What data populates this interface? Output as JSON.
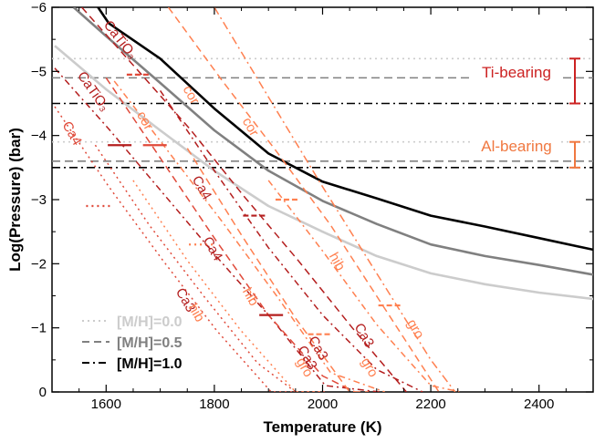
{
  "chart_data": {
    "type": "line",
    "xlabel": "Temperature (K)",
    "ylabel": "Log(Pressure) (bar)",
    "xlim": [
      1500,
      2500
    ],
    "ylim": [
      0,
      -6
    ],
    "xticks": [
      "1600",
      "1800",
      "2000",
      "2200",
      "2400"
    ],
    "yticks": [
      "0",
      "−1",
      "−2",
      "−3",
      "−4",
      "−5",
      "−6"
    ],
    "colors": {
      "mh00": "#cccccc",
      "mh05": "#808080",
      "mh10": "#000000",
      "ti": "#cc2222",
      "al": "#f07840",
      "dark_red": "#b41e1e",
      "mid_red": "#e04a3a",
      "orange": "#ff8050"
    },
    "tp_profiles": [
      {
        "name": "[M/H]=0.0",
        "color": "#cccccc",
        "x": [
          1505,
          1600,
          1700,
          1800,
          1900,
          2000,
          2100,
          2200,
          2300,
          2400,
          2500
        ],
        "y": [
          -5.4,
          -4.72,
          -4.08,
          -3.45,
          -2.9,
          -2.5,
          -2.12,
          -1.85,
          -1.68,
          -1.55,
          -1.45
        ]
      },
      {
        "name": "[M/H]=0.5",
        "color": "#808080",
        "x": [
          1540,
          1600,
          1700,
          1800,
          1900,
          2000,
          2100,
          2200,
          2300,
          2400,
          2500
        ],
        "y": [
          -6.0,
          -5.55,
          -4.82,
          -4.08,
          -3.45,
          -2.98,
          -2.62,
          -2.3,
          -2.12,
          -1.98,
          -1.83
        ]
      },
      {
        "name": "[M/H]=1.0",
        "color": "#000000",
        "x": [
          1585,
          1605,
          1700,
          1800,
          1900,
          2000,
          2100,
          2200,
          2300,
          2400,
          2500
        ],
        "y": [
          -6.0,
          -5.75,
          -5.2,
          -4.42,
          -3.72,
          -3.28,
          -3.02,
          -2.75,
          -2.58,
          -2.4,
          -2.22
        ]
      }
    ],
    "condensation_curves": [
      {
        "species": "CaTiO₃",
        "metallicity": "[M/H]=1.0",
        "color": "#b41e1e",
        "dash": "8,5",
        "x": [
          1555,
          1655,
          1755,
          1855,
          1955,
          2055,
          2155
        ],
        "y": [
          -6.0,
          -5.05,
          -4.1,
          -3.05,
          -2.05,
          -1.0,
          0.0
        ]
      },
      {
        "species": "CaTiO₃",
        "metallicity": "[M/H]=0.5",
        "color": "#b41e1e",
        "dash": "7,4,2,4",
        "x": [
          1505,
          1605,
          1705,
          1805,
          1905,
          2005,
          2105
        ],
        "y": [
          -5.05,
          -4.1,
          -3.1,
          -2.1,
          -1.15,
          -0.1,
          0.0
        ]
      },
      {
        "species": "cor",
        "metallicity": "[M/H]=1.0",
        "color": "#ff8050",
        "dash": "8,5",
        "x": [
          1715,
          1815,
          1915,
          2015,
          2115,
          2215
        ],
        "y": [
          -6.0,
          -4.85,
          -3.75,
          -2.6,
          -1.3,
          0.0
        ]
      },
      {
        "species": "cor",
        "metallicity": "[M/H]=0.5",
        "color": "#ff8050",
        "dash": "7,4,2,4",
        "x": [
          1615,
          1715,
          1815,
          1915,
          2015,
          2115
        ],
        "y": [
          -4.85,
          -3.75,
          -2.65,
          -1.5,
          -0.3,
          0.0
        ]
      },
      {
        "species": "cor",
        "metallicity": "[M/H]=1.0",
        "color": "#ff8050",
        "dash": "9,4,2,4",
        "x": [
          1800,
          1900,
          2000,
          2100,
          2200,
          2245
        ],
        "y": [
          -6.0,
          -4.6,
          -3.2,
          -1.85,
          -0.5,
          0.0
        ]
      },
      {
        "species": "Ca4",
        "metallicity": "[M/H]=0.5",
        "color": "#e04a3a",
        "dash": "2,4",
        "x": [
          1505,
          1605,
          1705,
          1805,
          1905,
          2005
        ],
        "y": [
          -4.45,
          -3.2,
          -2.05,
          -0.95,
          0.0,
          0.0
        ]
      },
      {
        "species": "Ca4",
        "metallicity": "[M/H]=1.0",
        "color": "#e04a3a",
        "dash": "8,5",
        "x": [
          1600,
          1700,
          1800,
          1900,
          2000,
          2060
        ],
        "y": [
          -4.9,
          -3.65,
          -2.4,
          -1.2,
          -0.25,
          0.0
        ]
      },
      {
        "species": "Ca3",
        "metallicity": "[M/H]=0.0",
        "color": "#e04a3a",
        "dash": "2,4",
        "x": [
          1580,
          1680,
          1780,
          1880,
          1950
        ],
        "y": [
          -3.85,
          -2.6,
          -1.5,
          -0.45,
          0.0
        ]
      },
      {
        "species": "Ca3",
        "metallicity": "[M/H]=1.0",
        "color": "#b41e1e",
        "dash": "7,4,2,4",
        "x": [
          1700,
          1800,
          1900,
          2000,
          2100,
          2185
        ],
        "y": [
          -4.7,
          -3.45,
          -2.25,
          -1.2,
          -0.35,
          0.0
        ]
      },
      {
        "species": "hib",
        "metallicity": "[M/H]=0.5",
        "color": "#ff8050",
        "dash": "2,4",
        "x": [
          1650,
          1750,
          1850,
          1950,
          2000
        ],
        "y": [
          -3.3,
          -2.05,
          -0.95,
          0.0,
          0.0
        ]
      },
      {
        "species": "hib",
        "metallicity": "[M/H]=1.0",
        "color": "#ff8050",
        "dash": "8,5",
        "x": [
          1750,
          1850,
          1950,
          2050,
          2085
        ],
        "y": [
          -3.8,
          -2.45,
          -1.15,
          0.0,
          0.0
        ]
      },
      {
        "species": "gro",
        "metallicity": "[M/H]=1.0",
        "color": "#ff8050",
        "dash": "7,4,2,4",
        "x": [
          1900,
          2000,
          2100,
          2200,
          2255
        ],
        "y": [
          -3.3,
          -2.2,
          -1.05,
          -0.1,
          0.0
        ]
      }
    ],
    "cloud_bases": [
      {
        "y": -5.2,
        "style": "dotted",
        "color": "#cccccc"
      },
      {
        "y": -4.9,
        "style": "dashed",
        "color": "#808080"
      },
      {
        "y": -4.5,
        "style": "dashdot",
        "color": "#000000"
      },
      {
        "y": -3.9,
        "style": "dotted",
        "color": "#cccccc"
      },
      {
        "y": -3.6,
        "style": "dashed",
        "color": "#808080"
      },
      {
        "y": -3.5,
        "style": "dashdot",
        "color": "#000000"
      }
    ],
    "intersection_markers": [
      {
        "x": 1660,
        "y": -4.95,
        "color": "#e04a3a",
        "dash": "8,5"
      },
      {
        "x": 1625,
        "y": -3.85,
        "color": "#b41e1e",
        "dash": ""
      },
      {
        "x": 1690,
        "y": -3.85,
        "color": "#e04a3a",
        "dash": ""
      },
      {
        "x": 1585,
        "y": -2.9,
        "color": "#e04a3a",
        "dash": "2,4"
      },
      {
        "x": 1875,
        "y": -2.75,
        "color": "#b41e1e",
        "dash": "8,5"
      },
      {
        "x": 1935,
        "y": -3.0,
        "color": "#ff8050",
        "dash": "8,5"
      },
      {
        "x": 1775,
        "y": -2.3,
        "color": "#ff8050",
        "dash": "2,4"
      },
      {
        "x": 1905,
        "y": -1.2,
        "color": "#b41e1e",
        "dash": ""
      },
      {
        "x": 1995,
        "y": -0.9,
        "color": "#ff8050",
        "dash": "8,5"
      },
      {
        "x": 2125,
        "y": -1.35,
        "color": "#ff8050",
        "dash": "8,5"
      }
    ],
    "labels": [
      {
        "text": "CaTiO₃",
        "x": 1620,
        "y": -5.45,
        "color": "#b41e1e",
        "rotate": 52
      },
      {
        "text": "CaTiO₃",
        "x": 1570,
        "y": -4.65,
        "color": "#b41e1e",
        "rotate": 55
      },
      {
        "text": "cor",
        "x": 1750,
        "y": -4.6,
        "color": "#ff8050",
        "rotate": 60
      },
      {
        "text": "cor",
        "x": 1665,
        "y": -4.2,
        "color": "#ff8050",
        "rotate": 60
      },
      {
        "text": "cor",
        "x": 1860,
        "y": -4.1,
        "color": "#ff8050",
        "rotate": 60
      },
      {
        "text": "Ca4",
        "x": 1530,
        "y": -4.0,
        "color": "#e04a3a",
        "rotate": 60
      },
      {
        "text": "Ca4",
        "x": 1770,
        "y": -3.15,
        "color": "#b41e1e",
        "rotate": 60
      },
      {
        "text": "Ca4",
        "x": 1790,
        "y": -2.2,
        "color": "#b41e1e",
        "rotate": 60
      },
      {
        "text": "Ca3",
        "x": 1740,
        "y": -1.4,
        "color": "#b41e1e",
        "rotate": 60
      },
      {
        "text": "hib",
        "x": 1760,
        "y": -1.2,
        "color": "#ff8050",
        "rotate": 60
      },
      {
        "text": "hib",
        "x": 1860,
        "y": -1.45,
        "color": "#ff8050",
        "rotate": 60
      },
      {
        "text": "hib",
        "x": 2020,
        "y": -2.0,
        "color": "#ff8050",
        "rotate": 60
      },
      {
        "text": "gro",
        "x": 2165,
        "y": -0.95,
        "color": "#ff8050",
        "rotate": 60
      },
      {
        "text": "gro",
        "x": 1960,
        "y": -0.35,
        "color": "#ff8050",
        "rotate": 60
      },
      {
        "text": "gro",
        "x": 2080,
        "y": -0.35,
        "color": "#ff8050",
        "rotate": 60
      },
      {
        "text": "Ca3",
        "x": 2070,
        "y": -0.85,
        "color": "#b41e1e",
        "rotate": 60
      },
      {
        "text": "Ca3",
        "x": 1985,
        "y": -0.65,
        "color": "#b41e1e",
        "rotate": 60
      },
      {
        "text": "Ca3",
        "x": 1965,
        "y": -0.5,
        "color": "#b41e1e",
        "rotate": 60
      }
    ],
    "legend": {
      "placement": "bottom-left",
      "entries": [
        {
          "label": "[M/H]=0.0",
          "color": "#cccccc",
          "dash": "2,4"
        },
        {
          "label": "[M/H]=0.5",
          "color": "#808080",
          "dash": "8,5"
        },
        {
          "label": "[M/H]=1.0",
          "color": "#000000",
          "dash": "8,4,2,4"
        }
      ]
    },
    "groups": [
      {
        "label": "Ti-bearing",
        "color": "#cc2222",
        "y_top": -5.2,
        "y_bottom": -4.5
      },
      {
        "label": "Al-bearing",
        "color": "#f07840",
        "y_top": -3.9,
        "y_bottom": -3.5
      }
    ]
  }
}
